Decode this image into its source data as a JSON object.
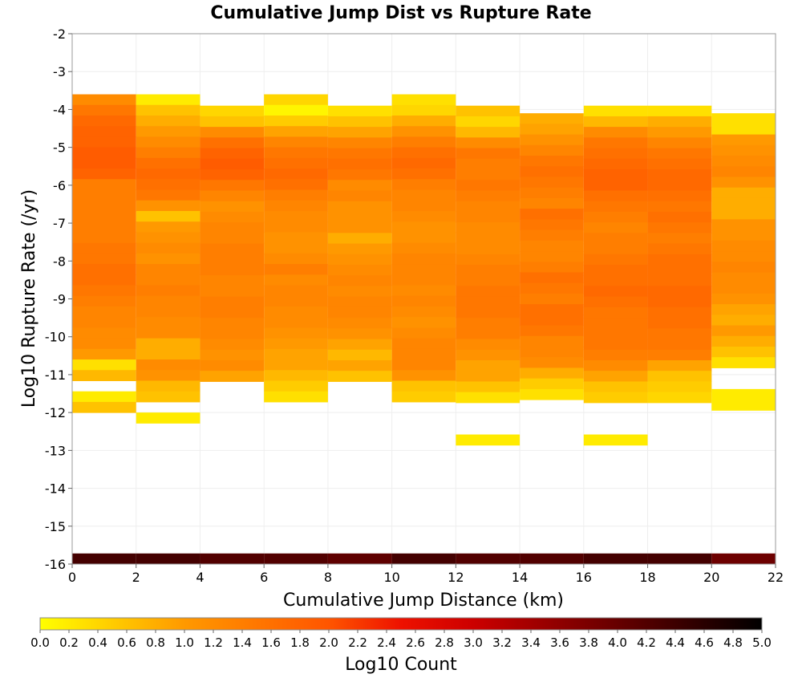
{
  "chart_data": {
    "type": "heatmap",
    "title": "Cumulative Jump Dist vs Rupture Rate",
    "xlabel": "Cumulative Jump Distance (km)",
    "ylabel": "Log10 Rupture Rate (/yr)",
    "xlim": [
      0,
      22
    ],
    "ylim": [
      -16,
      -2
    ],
    "x_ticks": [
      0,
      2,
      4,
      6,
      8,
      10,
      12,
      14,
      16,
      18,
      20,
      22
    ],
    "y_ticks": [
      -2,
      -3,
      -4,
      -5,
      -6,
      -7,
      -8,
      -9,
      -10,
      -11,
      -12,
      -13,
      -14,
      -15,
      -16
    ],
    "x_bin_width": 2,
    "y_bin_height": 0.28,
    "grid": true,
    "colorbar": {
      "label": "Log10 Count",
      "range": [
        0.0,
        5.0
      ],
      "ticks": [
        "0.0",
        "0.2",
        "0.4",
        "0.6",
        "0.8",
        "1.0",
        "1.2",
        "1.4",
        "1.6",
        "1.8",
        "2.0",
        "2.2",
        "2.4",
        "2.6",
        "2.8",
        "3.0",
        "3.2",
        "3.4",
        "3.6",
        "3.8",
        "4.0",
        "4.2",
        "4.4",
        "4.6",
        "4.8",
        "5.0"
      ],
      "colors": [
        "#ffff00",
        "#ff9900",
        "#ff5500",
        "#dd0000",
        "#880000",
        "#000000"
      ],
      "placement": "bottom"
    },
    "columns": [
      {
        "x_start": 0,
        "y_top": -3.6,
        "values": [
          1.2,
          1.5,
          1.7,
          1.8,
          1.8,
          1.9,
          1.9,
          1.8,
          1.4,
          1.4,
          1.4,
          1.4,
          1.4,
          1.4,
          1.5,
          1.5,
          1.6,
          1.6,
          1.5,
          1.4,
          1.3,
          1.3,
          1.2,
          1.2,
          1.0,
          0.3,
          0.7,
          null,
          0.2,
          0.6
        ]
      },
      {
        "x_start": 2,
        "y_top": -3.6,
        "values": [
          0.2,
          0.6,
          0.8,
          1.0,
          1.2,
          1.4,
          1.6,
          1.7,
          1.6,
          1.5,
          1.1,
          0.6,
          1.0,
          1.1,
          1.2,
          1.1,
          1.3,
          1.3,
          1.4,
          1.3,
          1.3,
          1.2,
          1.2,
          0.8,
          0.8,
          1.2,
          1.1,
          0.7,
          0.6,
          null,
          0.2
        ]
      },
      {
        "x_start": 4,
        "y_top": -3.9,
        "values": [
          0.4,
          0.6,
          1.2,
          1.6,
          1.8,
          1.9,
          1.8,
          1.5,
          1.3,
          1.1,
          1.2,
          1.3,
          1.3,
          1.4,
          1.4,
          1.4,
          1.3,
          1.3,
          1.4,
          1.4,
          1.3,
          1.3,
          1.2,
          1.1,
          1.2,
          0.9
        ]
      },
      {
        "x_start": 6,
        "y_top": -3.6,
        "values": [
          0.4,
          0.1,
          0.5,
          0.9,
          1.3,
          1.5,
          1.6,
          1.7,
          1.6,
          1.4,
          1.3,
          1.2,
          1.2,
          1.1,
          1.1,
          1.2,
          1.4,
          1.2,
          1.3,
          1.3,
          1.2,
          1.2,
          1.1,
          1.0,
          0.9,
          0.9,
          0.7,
          0.5,
          0.3
        ]
      },
      {
        "x_start": 8,
        "y_top": -3.9,
        "values": [
          0.3,
          0.6,
          0.9,
          1.3,
          1.5,
          1.6,
          1.5,
          1.2,
          1.3,
          1.1,
          1.1,
          1.1,
          0.8,
          1.0,
          1.1,
          1.2,
          1.3,
          1.2,
          1.3,
          1.3,
          1.2,
          1.1,
          0.9,
          0.7,
          0.9,
          0.6
        ]
      },
      {
        "x_start": 10,
        "y_top": -3.6,
        "values": [
          0.3,
          0.4,
          0.8,
          1.1,
          1.4,
          1.6,
          1.7,
          1.6,
          1.4,
          1.3,
          1.3,
          1.2,
          1.1,
          1.1,
          1.2,
          1.3,
          1.3,
          1.3,
          1.2,
          1.3,
          1.2,
          1.1,
          1.2,
          1.3,
          1.3,
          1.3,
          1.1,
          0.6,
          0.5
        ]
      },
      {
        "x_start": 12,
        "y_top": -3.9,
        "values": [
          0.6,
          0.4,
          0.7,
          1.2,
          1.5,
          1.4,
          1.4,
          1.5,
          1.4,
          1.3,
          1.3,
          1.2,
          1.2,
          1.2,
          1.3,
          1.4,
          1.4,
          1.5,
          1.5,
          1.5,
          1.4,
          1.4,
          1.2,
          1.1,
          0.9,
          0.9,
          0.6,
          0.3,
          null,
          null,
          null,
          0.2
        ]
      },
      {
        "x_start": 14,
        "y_top": -4.1,
        "values": [
          0.8,
          0.9,
          1.1,
          1.3,
          1.5,
          1.6,
          1.5,
          1.4,
          1.3,
          1.6,
          1.5,
          1.4,
          1.3,
          1.3,
          1.4,
          1.6,
          1.5,
          1.4,
          1.6,
          1.6,
          1.5,
          1.3,
          1.3,
          1.2,
          0.8,
          0.5,
          0.3
        ]
      },
      {
        "x_start": 16,
        "y_top": -3.9,
        "values": [
          0.3,
          0.7,
          1.2,
          1.5,
          1.6,
          1.7,
          1.8,
          1.8,
          1.6,
          1.5,
          1.4,
          1.3,
          1.4,
          1.4,
          1.5,
          1.6,
          1.6,
          1.7,
          1.6,
          1.5,
          1.5,
          1.5,
          1.5,
          1.4,
          1.2,
          0.9,
          0.6,
          0.5,
          null,
          null,
          null,
          0.2
        ]
      },
      {
        "x_start": 18,
        "y_top": -3.9,
        "values": [
          0.3,
          0.8,
          1.0,
          1.3,
          1.5,
          1.6,
          1.7,
          1.7,
          1.6,
          1.5,
          1.6,
          1.5,
          1.4,
          1.5,
          1.6,
          1.6,
          1.6,
          1.7,
          1.7,
          1.6,
          1.6,
          1.5,
          1.5,
          1.4,
          0.9,
          0.6,
          0.5,
          0.4
        ]
      },
      {
        "x_start": 20,
        "y_top": -4.1,
        "values": [
          0.3,
          0.3,
          1.0,
          1.1,
          1.2,
          1.3,
          1.1,
          0.8,
          0.8,
          0.8,
          1.1,
          1.1,
          1.2,
          1.2,
          1.3,
          1.2,
          1.2,
          1.1,
          0.9,
          0.8,
          1.0,
          0.8,
          0.6,
          0.3,
          null,
          null,
          0.2,
          0.2
        ]
      }
    ],
    "bottom_row": {
      "y": -16,
      "values": [
        4.5,
        4.5,
        4.4,
        4.4,
        4.3,
        4.5,
        4.4,
        4.4,
        4.5,
        4.5,
        4.2
      ]
    }
  }
}
